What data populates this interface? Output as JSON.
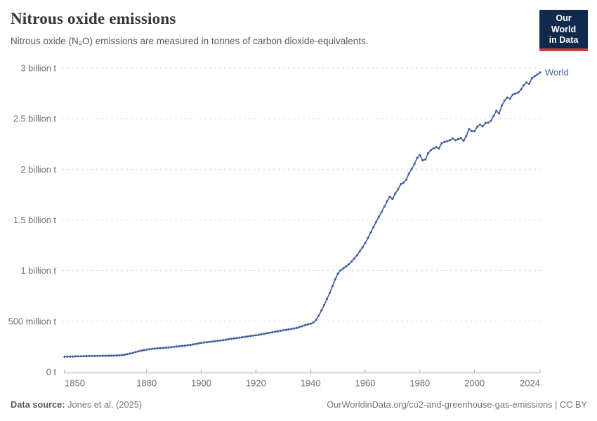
{
  "header": {
    "title": "Nitrous oxide emissions",
    "subtitle": "Nitrous oxide (N₂O) emissions are measured in tonnes of carbon dioxide-equivalents.",
    "logo": {
      "line1": "Our World",
      "line2": "in Data",
      "bg_color": "#12294e",
      "accent_color": "#d0393e"
    }
  },
  "footer": {
    "source_label": "Data source:",
    "source_value": "Jones et al. (2025)",
    "right_text": "OurWorldinData.org/co2-and-greenhouse-gas-emissions | CC BY"
  },
  "colors": {
    "series_blue": "#44639f",
    "grid": "#dddddd",
    "axis": "#a3a3a3",
    "tick_label": "#6e6e6e"
  },
  "chart_data": {
    "type": "line",
    "title": "Nitrous oxide emissions",
    "ylabel": "",
    "xlabel": "",
    "unit": "billion tonnes of CO₂-equivalents",
    "xlim": [
      1850,
      2024
    ],
    "ylim": [
      0,
      3
    ],
    "grid": "dashed-horizontal",
    "legend_position": "end-of-line-label",
    "x_ticks": [
      1850,
      1880,
      1900,
      1920,
      1940,
      1960,
      1980,
      2000,
      2024
    ],
    "y_tick_values": [
      0,
      0.5,
      1,
      1.5,
      2,
      2.5,
      3
    ],
    "y_tick_labels": [
      "0 t",
      "500 million t",
      "1 billion t",
      "1.5 billion t",
      "2 billion t",
      "2.5 billion t",
      "3 billion t"
    ],
    "series": [
      {
        "name": "World",
        "color": "#44639f",
        "x_start": 1850,
        "x_end": 2024,
        "x_interval": 1,
        "values": [
          0.15,
          0.151,
          0.151,
          0.152,
          0.153,
          0.154,
          0.154,
          0.155,
          0.156,
          0.156,
          0.157,
          0.157,
          0.158,
          0.158,
          0.159,
          0.159,
          0.16,
          0.16,
          0.161,
          0.162,
          0.163,
          0.166,
          0.17,
          0.175,
          0.181,
          0.188,
          0.196,
          0.203,
          0.209,
          0.215,
          0.22,
          0.224,
          0.227,
          0.23,
          0.232,
          0.234,
          0.236,
          0.238,
          0.241,
          0.244,
          0.247,
          0.25,
          0.253,
          0.256,
          0.259,
          0.263,
          0.267,
          0.271,
          0.276,
          0.281,
          0.286,
          0.29,
          0.293,
          0.296,
          0.299,
          0.302,
          0.306,
          0.31,
          0.314,
          0.318,
          0.322,
          0.326,
          0.33,
          0.334,
          0.338,
          0.342,
          0.346,
          0.35,
          0.354,
          0.358,
          0.362,
          0.366,
          0.371,
          0.376,
          0.381,
          0.386,
          0.391,
          0.396,
          0.401,
          0.406,
          0.411,
          0.415,
          0.419,
          0.424,
          0.429,
          0.435,
          0.443,
          0.452,
          0.461,
          0.469,
          0.476,
          0.487,
          0.513,
          0.556,
          0.607,
          0.662,
          0.719,
          0.779,
          0.846,
          0.914,
          0.969,
          1.003,
          1.022,
          1.041,
          1.062,
          1.089,
          1.119,
          1.151,
          1.19,
          1.23,
          1.272,
          1.322,
          1.378,
          1.43,
          1.481,
          1.531,
          1.58,
          1.631,
          1.684,
          1.73,
          1.708,
          1.762,
          1.802,
          1.853,
          1.869,
          1.898,
          1.959,
          2.003,
          2.052,
          2.111,
          2.141,
          2.089,
          2.097,
          2.159,
          2.19,
          2.207,
          2.219,
          2.205,
          2.258,
          2.27,
          2.278,
          2.288,
          2.305,
          2.287,
          2.297,
          2.309,
          2.283,
          2.33,
          2.397,
          2.38,
          2.377,
          2.42,
          2.441,
          2.426,
          2.457,
          2.461,
          2.479,
          2.528,
          2.577,
          2.551,
          2.629,
          2.679,
          2.708,
          2.698,
          2.738,
          2.749,
          2.758,
          2.789,
          2.829,
          2.857,
          2.845,
          2.898,
          2.919,
          2.937,
          2.958
        ]
      }
    ]
  }
}
